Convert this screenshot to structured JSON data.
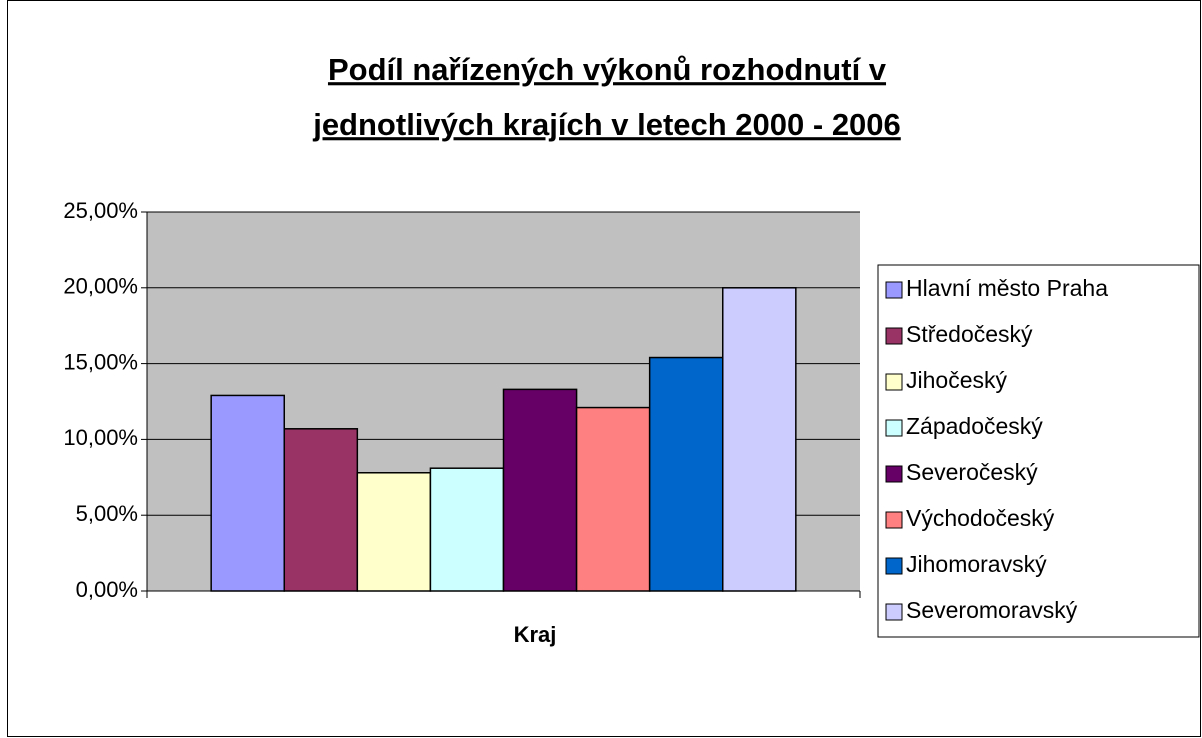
{
  "chart_data": {
    "type": "bar",
    "title": [
      "Podíl nařízených výkonů rozhodnutí v",
      "jednotlivých krajích v letech 2000 - 2006"
    ],
    "x_label": "Kraj",
    "series": [
      {
        "name": "Hlavní město Praha",
        "color": "#9999ff",
        "values": [
          12.9
        ]
      },
      {
        "name": "Středočeský",
        "color": "#993366",
        "values": [
          10.7
        ]
      },
      {
        "name": "Jihočeský",
        "color": "#ffffcc",
        "values": [
          7.8
        ]
      },
      {
        "name": "Západočeský",
        "color": "#ccffff",
        "values": [
          8.1
        ]
      },
      {
        "name": "Severočeský",
        "color": "#660066",
        "values": [
          13.3
        ]
      },
      {
        "name": "Východočeský",
        "color": "#ff8080",
        "values": [
          12.1
        ]
      },
      {
        "name": "Jihomoravský",
        "color": "#0066cc",
        "values": [
          15.4
        ]
      },
      {
        "name": "Severomoravský",
        "color": "#ccccff",
        "values": [
          20.0
        ]
      }
    ],
    "ylim": [
      0,
      25
    ],
    "yticks": [
      {
        "value": 0,
        "label": "0,00%"
      },
      {
        "value": 5,
        "label": "5,00%"
      },
      {
        "value": 10,
        "label": "10,00%"
      },
      {
        "value": 15,
        "label": "15,00%"
      },
      {
        "value": 20,
        "label": "20,00%"
      },
      {
        "value": 25,
        "label": "25,00%"
      }
    ],
    "grid": true,
    "plot_background": "#c0c0c0",
    "legend": "right"
  }
}
